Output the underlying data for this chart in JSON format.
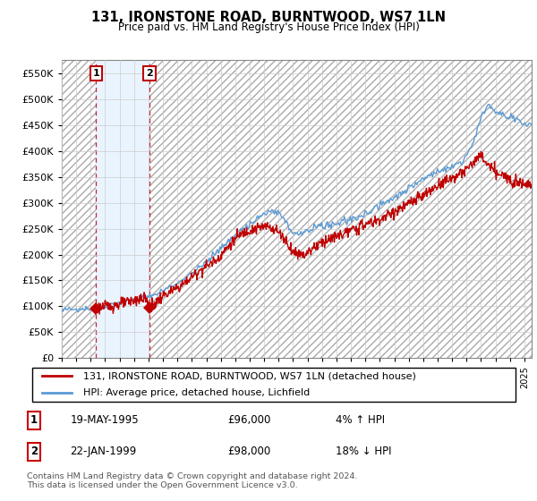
{
  "title": "131, IRONSTONE ROAD, BURNTWOOD, WS7 1LN",
  "subtitle": "Price paid vs. HM Land Registry's House Price Index (HPI)",
  "legend_line1": "131, IRONSTONE ROAD, BURNTWOOD, WS7 1LN (detached house)",
  "legend_line2": "HPI: Average price, detached house, Lichfield",
  "sale1_date": "19-MAY-1995",
  "sale1_price": 96000,
  "sale1_label": "4% ↑ HPI",
  "sale2_date": "22-JAN-1999",
  "sale2_price": 98000,
  "sale2_label": "18% ↓ HPI",
  "footer": "Contains HM Land Registry data © Crown copyright and database right 2024.\nThis data is licensed under the Open Government Licence v3.0.",
  "hpi_color": "#5b9bd5",
  "price_color": "#c00000",
  "sale_marker_color": "#c00000",
  "vline_color": "#c00000",
  "shade_color": "#ddeeff",
  "background_color": "#ffffff",
  "ylim": [
    0,
    575000
  ],
  "yticks": [
    0,
    50000,
    100000,
    150000,
    200000,
    250000,
    300000,
    350000,
    400000,
    450000,
    500000,
    550000
  ],
  "sale1_x": 1995.38,
  "sale2_x": 1999.06,
  "xlim_left": 1993.0,
  "xlim_right": 2025.5
}
